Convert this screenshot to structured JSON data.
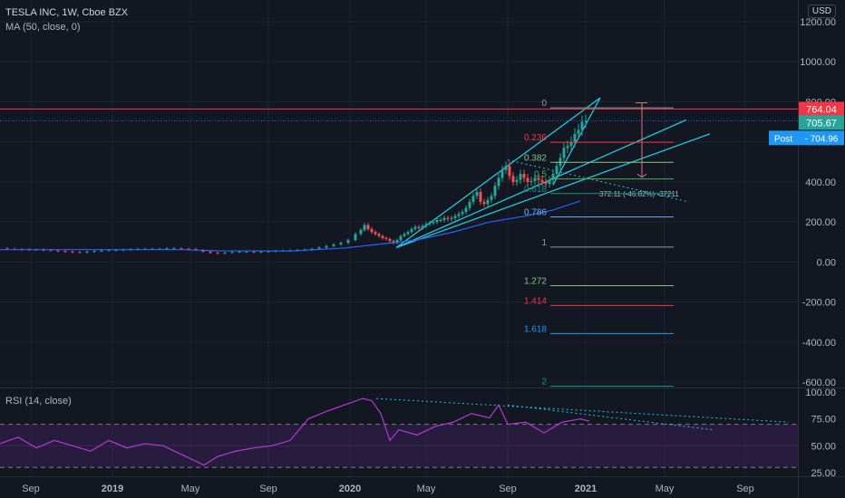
{
  "header": {
    "symbol_line": "TESLA INC, 1W, Cboe BZX",
    "ma_indicator": "MA (50, close, 0)",
    "rsi_indicator": "RSI (14, close)",
    "currency_button": "USD"
  },
  "colors": {
    "background": "#131722",
    "grid": "#1f2330",
    "candle_up": "#26a69a",
    "candle_down": "#ef5350",
    "ma_line": "#2962ff",
    "trend_lines": "#22c7d8",
    "rsi_line": "#b23bd1",
    "rsi_band": "#3a2056",
    "resistance": "#f23645",
    "text": "#b2b5be"
  },
  "price_labels": {
    "last": "764.04",
    "current": "705.67",
    "post_tag": "Post",
    "post_value": "704.96"
  },
  "measure_label": "372.11 (-46.82%) -37211",
  "chart_data": [
    {
      "type": "line",
      "name": "price",
      "y_axis_ticks": [
        "1200.00",
        "1000.00",
        "800.00",
        "600.00",
        "400.00",
        "200.00",
        "0.00",
        "-200.00",
        "-400.00",
        "-600.00"
      ],
      "ylim": [
        -620,
        1230
      ],
      "x_axis_ticks": [
        "Sep",
        "2019",
        "May",
        "Sep",
        "2020",
        "May",
        "Sep",
        "2021",
        "May",
        "Sep"
      ],
      "close_weekly_approx": [
        [
          0,
          68
        ],
        [
          8,
          65
        ],
        [
          16,
          64
        ],
        [
          24,
          63
        ],
        [
          32,
          62
        ],
        [
          40,
          62
        ],
        [
          48,
          60
        ],
        [
          56,
          58
        ],
        [
          64,
          55
        ],
        [
          72,
          52
        ],
        [
          80,
          50
        ],
        [
          88,
          48
        ],
        [
          96,
          52
        ],
        [
          104,
          55
        ],
        [
          112,
          58
        ],
        [
          120,
          60
        ],
        [
          128,
          60
        ],
        [
          136,
          62
        ],
        [
          144,
          64
        ],
        [
          152,
          66
        ],
        [
          160,
          66
        ],
        [
          168,
          66
        ],
        [
          176,
          66
        ],
        [
          184,
          68
        ],
        [
          192,
          68
        ],
        [
          200,
          66
        ],
        [
          208,
          64
        ],
        [
          216,
          60
        ],
        [
          224,
          52
        ],
        [
          232,
          46
        ],
        [
          240,
          44
        ],
        [
          248,
          46
        ],
        [
          256,
          50
        ],
        [
          264,
          52
        ],
        [
          272,
          52
        ],
        [
          280,
          50
        ],
        [
          288,
          52
        ],
        [
          296,
          54
        ],
        [
          304,
          56
        ],
        [
          312,
          56
        ],
        [
          320,
          58
        ],
        [
          328,
          60
        ],
        [
          336,
          62
        ],
        [
          344,
          66
        ],
        [
          352,
          72
        ],
        [
          360,
          80
        ],
        [
          368,
          88
        ],
        [
          376,
          96
        ],
        [
          384,
          110
        ],
        [
          392,
          140
        ],
        [
          398,
          160
        ],
        [
          402,
          185
        ],
        [
          406,
          165
        ],
        [
          410,
          150
        ],
        [
          414,
          140
        ],
        [
          418,
          130
        ],
        [
          422,
          120
        ],
        [
          426,
          115
        ],
        [
          430,
          105
        ],
        [
          434,
          95
        ],
        [
          438,
          110
        ],
        [
          442,
          130
        ],
        [
          446,
          140
        ],
        [
          450,
          150
        ],
        [
          454,
          165
        ],
        [
          458,
          175
        ],
        [
          462,
          170
        ],
        [
          466,
          180
        ],
        [
          470,
          190
        ],
        [
          474,
          195
        ],
        [
          478,
          200
        ],
        [
          482,
          210
        ],
        [
          486,
          210
        ],
        [
          490,
          220
        ],
        [
          494,
          215
        ],
        [
          498,
          220
        ],
        [
          502,
          230
        ],
        [
          506,
          240
        ],
        [
          510,
          250
        ],
        [
          514,
          270
        ],
        [
          518,
          300
        ],
        [
          522,
          330
        ],
        [
          526,
          350
        ],
        [
          530,
          300
        ],
        [
          534,
          290
        ],
        [
          538,
          310
        ],
        [
          542,
          330
        ],
        [
          546,
          380
        ],
        [
          550,
          420
        ],
        [
          554,
          460
        ],
        [
          558,
          480
        ],
        [
          562,
          430
        ],
        [
          566,
          400
        ],
        [
          570,
          410
        ],
        [
          574,
          440
        ],
        [
          578,
          420
        ],
        [
          582,
          400
        ],
        [
          586,
          405
        ],
        [
          590,
          420
        ],
        [
          594,
          410
        ],
        [
          598,
          400
        ],
        [
          602,
          390
        ],
        [
          606,
          410
        ],
        [
          610,
          440
        ],
        [
          614,
          480
        ],
        [
          618,
          520
        ],
        [
          622,
          570
        ],
        [
          626,
          580
        ],
        [
          630,
          600
        ],
        [
          634,
          640
        ],
        [
          638,
          660
        ],
        [
          642,
          700
        ],
        [
          646,
          705
        ]
      ],
      "ma50_approx": [
        [
          0,
          62
        ],
        [
          200,
          62
        ],
        [
          240,
          56
        ],
        [
          320,
          55
        ],
        [
          380,
          70
        ],
        [
          420,
          90
        ],
        [
          460,
          110
        ],
        [
          500,
          150
        ],
        [
          540,
          200
        ],
        [
          580,
          230
        ],
        [
          610,
          260
        ],
        [
          640,
          305
        ]
      ],
      "fibonacci": [
        {
          "label": "0",
          "value": 770
        },
        {
          "label": "0.236",
          "value": 598
        },
        {
          "label": "0.382",
          "value": 498
        },
        {
          "label": "0.5",
          "value": 415
        },
        {
          "label": "0.618",
          "value": 342
        },
        {
          "label": "0.786",
          "value": 225
        },
        {
          "label": "1",
          "value": 75
        },
        {
          "label": "1.272",
          "value": -118
        },
        {
          "label": "1.414",
          "value": -217
        },
        {
          "label": "1.618",
          "value": -357
        },
        {
          "label": "2",
          "value": -620
        }
      ],
      "resistance_level": 764.04
    },
    {
      "type": "line",
      "name": "RSI",
      "y_axis_ticks": [
        "100.00",
        "75.00",
        "50.00",
        "25.00"
      ],
      "ylim": [
        22,
        102
      ],
      "overbought": 70,
      "oversold": 30,
      "values_approx": [
        [
          0,
          52
        ],
        [
          20,
          58
        ],
        [
          40,
          48
        ],
        [
          60,
          55
        ],
        [
          80,
          50
        ],
        [
          100,
          45
        ],
        [
          120,
          55
        ],
        [
          140,
          48
        ],
        [
          160,
          52
        ],
        [
          180,
          50
        ],
        [
          200,
          42
        ],
        [
          215,
          36
        ],
        [
          225,
          32
        ],
        [
          240,
          40
        ],
        [
          260,
          45
        ],
        [
          280,
          48
        ],
        [
          300,
          50
        ],
        [
          320,
          55
        ],
        [
          340,
          75
        ],
        [
          360,
          82
        ],
        [
          380,
          88
        ],
        [
          400,
          94
        ],
        [
          410,
          92
        ],
        [
          420,
          80
        ],
        [
          430,
          55
        ],
        [
          440,
          65
        ],
        [
          460,
          60
        ],
        [
          480,
          68
        ],
        [
          500,
          72
        ],
        [
          520,
          80
        ],
        [
          540,
          76
        ],
        [
          550,
          88
        ],
        [
          560,
          70
        ],
        [
          580,
          72
        ],
        [
          600,
          62
        ],
        [
          620,
          72
        ],
        [
          640,
          75
        ],
        [
          650,
          73
        ]
      ]
    }
  ]
}
